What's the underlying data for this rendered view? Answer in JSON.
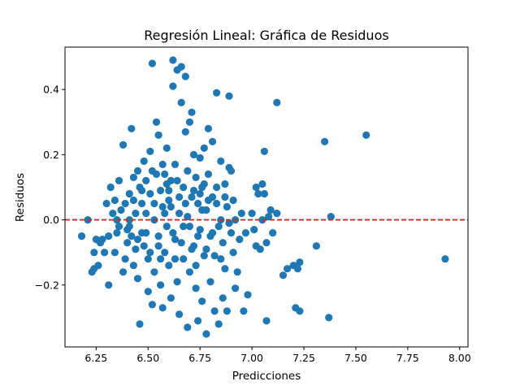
{
  "chart_data": {
    "type": "scatter",
    "title": "Regresión Lineal: Gráfica de Residuos",
    "xlabel": "Predicciones",
    "ylabel": "Residuos",
    "xlim": [
      6.1,
      8.04
    ],
    "ylim": [
      -0.39,
      0.53
    ],
    "xticks": [
      6.25,
      6.5,
      6.75,
      7.0,
      7.25,
      7.5,
      7.75,
      8.0
    ],
    "xtick_labels": [
      "6.25",
      "6.50",
      "6.75",
      "7.00",
      "7.25",
      "7.50",
      "7.75",
      "8.00"
    ],
    "yticks": [
      -0.2,
      0.0,
      0.2,
      0.4
    ],
    "ytick_labels": [
      "−0.2",
      "0.0",
      "0.2",
      "0.4"
    ],
    "reference_line": {
      "y": 0,
      "style": "dashed",
      "color": "#e41a1c"
    },
    "marker_color": "#1f77b4",
    "grid": false,
    "points": [
      [
        6.18,
        -0.05
      ],
      [
        6.21,
        0.0
      ],
      [
        6.23,
        -0.16
      ],
      [
        6.24,
        -0.15
      ],
      [
        6.24,
        -0.1
      ],
      [
        6.25,
        -0.06
      ],
      [
        6.26,
        -0.14
      ],
      [
        6.27,
        -0.07
      ],
      [
        6.28,
        -0.06
      ],
      [
        6.29,
        -0.1
      ],
      [
        6.3,
        0.05
      ],
      [
        6.31,
        -0.05
      ],
      [
        6.31,
        -0.2
      ],
      [
        6.32,
        0.1
      ],
      [
        6.33,
        0.02
      ],
      [
        6.34,
        0.06
      ],
      [
        6.34,
        -0.1
      ],
      [
        6.35,
        0.0
      ],
      [
        6.35,
        -0.04
      ],
      [
        6.36,
        0.12
      ],
      [
        6.36,
        -0.02
      ],
      [
        6.37,
        0.03
      ],
      [
        6.38,
        -0.16
      ],
      [
        6.38,
        0.23
      ],
      [
        6.39,
        0.05
      ],
      [
        6.39,
        -0.12
      ],
      [
        6.4,
        -0.07
      ],
      [
        6.4,
        -0.03
      ],
      [
        6.41,
        0.08
      ],
      [
        6.41,
        0.0
      ],
      [
        6.42,
        0.28
      ],
      [
        6.42,
        -0.05
      ],
      [
        6.43,
        0.13
      ],
      [
        6.43,
        -0.14
      ],
      [
        6.44,
        0.02
      ],
      [
        6.44,
        -0.09
      ],
      [
        6.45,
        0.15
      ],
      [
        6.45,
        -0.18
      ],
      [
        6.46,
        0.1
      ],
      [
        6.46,
        -0.32
      ],
      [
        6.47,
        0.05
      ],
      [
        6.47,
        -0.04
      ],
      [
        6.48,
        0.18
      ],
      [
        6.48,
        -0.08
      ],
      [
        6.49,
        0.12
      ],
      [
        6.49,
        0.02
      ],
      [
        6.5,
        -0.12
      ],
      [
        6.5,
        -0.22
      ],
      [
        6.51,
        0.21
      ],
      [
        6.51,
        0.08
      ],
      [
        6.52,
        -0.26
      ],
      [
        6.52,
        0.48
      ],
      [
        6.53,
        0.0
      ],
      [
        6.53,
        -0.16
      ],
      [
        6.54,
        0.3
      ],
      [
        6.54,
        0.14
      ],
      [
        6.55,
        -0.05
      ],
      [
        6.55,
        0.26
      ],
      [
        6.56,
        0.09
      ],
      [
        6.56,
        -0.2
      ],
      [
        6.57,
        0.04
      ],
      [
        6.57,
        -0.27
      ],
      [
        6.58,
        0.14
      ],
      [
        6.58,
        -0.1
      ],
      [
        6.59,
        0.22
      ],
      [
        6.59,
        -0.02
      ],
      [
        6.6,
        0.06
      ],
      [
        6.6,
        -0.14
      ],
      [
        6.61,
        0.12
      ],
      [
        6.61,
        -0.24
      ],
      [
        6.62,
        0.49
      ],
      [
        6.62,
        0.41
      ],
      [
        6.63,
        -0.06
      ],
      [
        6.63,
        0.17
      ],
      [
        6.64,
        0.46
      ],
      [
        6.64,
        -0.19
      ],
      [
        6.65,
        0.02
      ],
      [
        6.65,
        -0.29
      ],
      [
        6.66,
        0.47
      ],
      [
        6.66,
        0.36
      ],
      [
        6.67,
        0.1
      ],
      [
        6.67,
        -0.12
      ],
      [
        6.68,
        0.44
      ],
      [
        6.68,
        0.27
      ],
      [
        6.69,
        0.01
      ],
      [
        6.69,
        -0.33
      ],
      [
        6.7,
        0.3
      ],
      [
        6.7,
        -0.16
      ],
      [
        6.71,
        0.33
      ],
      [
        6.71,
        0.07
      ],
      [
        6.72,
        0.2
      ],
      [
        6.72,
        -0.08
      ],
      [
        6.73,
        0.13
      ],
      [
        6.73,
        -0.21
      ],
      [
        6.74,
        0.05
      ],
      [
        6.74,
        -0.31
      ],
      [
        6.75,
        0.19
      ],
      [
        6.75,
        -0.03
      ],
      [
        6.76,
        0.1
      ],
      [
        6.76,
        -0.25
      ],
      [
        6.77,
        0.22
      ],
      [
        6.77,
        -0.11
      ],
      [
        6.78,
        0.03
      ],
      [
        6.78,
        -0.35
      ],
      [
        6.79,
        0.28
      ],
      [
        6.79,
        0.14
      ],
      [
        6.8,
        -0.05
      ],
      [
        6.8,
        -0.19
      ],
      [
        6.81,
        0.24
      ],
      [
        6.81,
        0.07
      ],
      [
        6.82,
        -0.11
      ],
      [
        6.82,
        -0.28
      ],
      [
        6.83,
        0.39
      ],
      [
        6.83,
        0.05
      ],
      [
        6.84,
        -0.02
      ],
      [
        6.84,
        -0.32
      ],
      [
        6.85,
        0.18
      ],
      [
        6.85,
        0.0
      ],
      [
        6.86,
        -0.07
      ],
      [
        6.86,
        -0.24
      ],
      [
        6.87,
        0.11
      ],
      [
        6.87,
        -0.15
      ],
      [
        6.88,
        0.04
      ],
      [
        6.88,
        -0.28
      ],
      [
        6.89,
        0.16
      ],
      [
        6.89,
        0.38
      ],
      [
        6.9,
        -0.04
      ],
      [
        6.9,
        0.15
      ],
      [
        6.91,
        0.06
      ],
      [
        6.91,
        -0.1
      ],
      [
        6.92,
        -0.21
      ],
      [
        6.92,
        0.0
      ],
      [
        6.93,
        -0.16
      ],
      [
        6.94,
        -0.06
      ],
      [
        6.95,
        0.02
      ],
      [
        6.96,
        -0.28
      ],
      [
        6.97,
        -0.04
      ],
      [
        6.98,
        -0.23
      ],
      [
        7.0,
        0.02
      ],
      [
        7.01,
        -0.03
      ],
      [
        7.02,
        0.1
      ],
      [
        7.02,
        -0.08
      ],
      [
        7.03,
        0.08
      ],
      [
        7.04,
        -0.09
      ],
      [
        7.05,
        0.0
      ],
      [
        7.05,
        0.11
      ],
      [
        7.06,
        0.21
      ],
      [
        7.06,
        0.08
      ],
      [
        7.07,
        -0.07
      ],
      [
        7.07,
        -0.31
      ],
      [
        7.08,
        0.01
      ],
      [
        7.09,
        0.03
      ],
      [
        7.1,
        -0.04
      ],
      [
        7.12,
        0.02
      ],
      [
        7.12,
        0.36
      ],
      [
        7.15,
        -0.17
      ],
      [
        7.17,
        -0.15
      ],
      [
        7.2,
        -0.14
      ],
      [
        7.21,
        -0.27
      ],
      [
        7.22,
        -0.15
      ],
      [
        7.23,
        -0.13
      ],
      [
        7.23,
        -0.28
      ],
      [
        7.31,
        -0.08
      ],
      [
        7.35,
        0.24
      ],
      [
        7.37,
        -0.3
      ],
      [
        7.38,
        0.01
      ],
      [
        7.55,
        0.26
      ],
      [
        7.93,
        -0.12
      ],
      [
        6.53,
        0.05
      ],
      [
        6.55,
        -0.08
      ],
      [
        6.58,
        0.02
      ],
      [
        6.6,
        0.09
      ],
      [
        6.62,
        -0.04
      ],
      [
        6.64,
        0.12
      ],
      [
        6.66,
        -0.07
      ],
      [
        6.68,
        0.05
      ],
      [
        6.7,
        -0.02
      ],
      [
        6.72,
        0.09
      ],
      [
        6.74,
        -0.05
      ],
      [
        6.76,
        0.03
      ],
      [
        6.78,
        -0.09
      ],
      [
        6.49,
        -0.04
      ],
      [
        6.47,
        0.09
      ],
      [
        6.45,
        -0.06
      ],
      [
        6.43,
        0.06
      ],
      [
        6.41,
        -0.02
      ],
      [
        6.57,
        0.17
      ],
      [
        6.63,
        -0.12
      ],
      [
        6.69,
        0.15
      ],
      [
        6.73,
        -0.14
      ],
      [
        6.77,
        0.11
      ],
      [
        6.51,
        -0.1
      ],
      [
        6.59,
        0.11
      ],
      [
        6.65,
        0.07
      ],
      [
        6.71,
        -0.09
      ],
      [
        6.75,
        0.08
      ],
      [
        6.52,
        0.15
      ],
      [
        6.56,
        -0.12
      ],
      [
        6.61,
        0.04
      ],
      [
        6.67,
        -0.02
      ],
      [
        6.79,
        0.06
      ],
      [
        6.81,
        -0.04
      ],
      [
        6.83,
        0.1
      ],
      [
        6.85,
        -0.12
      ],
      [
        6.87,
        0.07
      ],
      [
        6.89,
        -0.01
      ]
    ]
  }
}
